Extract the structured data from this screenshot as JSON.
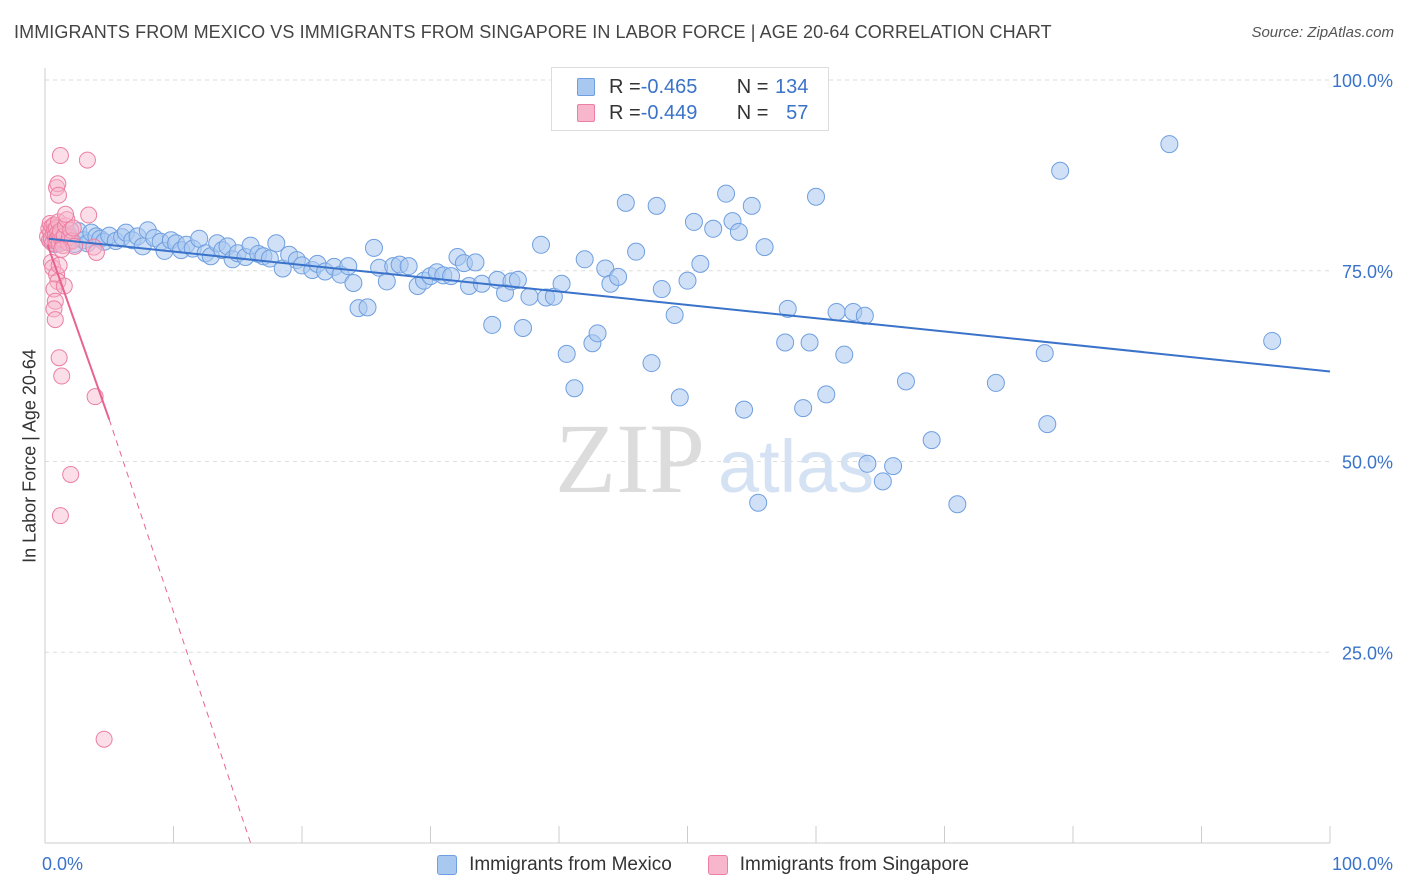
{
  "header": {
    "title": "IMMIGRANTS FROM MEXICO VS IMMIGRANTS FROM SINGAPORE IN LABOR FORCE | AGE 20-64 CORRELATION CHART",
    "source": "Source: ZipAtlas.com"
  },
  "watermark": {
    "zip": "ZIP",
    "atlas": "atlas"
  },
  "legend_top": {
    "rows": [
      {
        "r_label": "R = ",
        "r_value": "-0.465",
        "n_label": "N = ",
        "n_value": "134"
      },
      {
        "r_label": "R = ",
        "r_value": "-0.449",
        "n_label": "N = ",
        "n_value": "57"
      }
    ]
  },
  "colors": {
    "mexico_fill": "#a9c8f0",
    "mexico_stroke": "#6f9fe0",
    "mexico_line": "#3a73c9",
    "singapore_fill": "#f7b6cb",
    "singapore_stroke": "#ec7fa2",
    "singapore_line": "#e8648f",
    "tick_label": "#3a73c9",
    "grid": "#dddddd"
  },
  "chart_data": {
    "type": "scatter",
    "title": "IMMIGRANTS FROM MEXICO VS IMMIGRANTS FROM SINGAPORE IN LABOR FORCE | AGE 20-64 CORRELATION CHART",
    "xlabel": "",
    "ylabel": "In Labor Force | Age 20-64",
    "xlim": [
      0,
      100
    ],
    "ylim": [
      0,
      100
    ],
    "x_tick_labels": [
      "0.0%",
      "100.0%"
    ],
    "y_ticks": [
      25,
      50,
      75,
      100
    ],
    "y_tick_labels": [
      "25.0%",
      "50.0%",
      "75.0%",
      "100.0%"
    ],
    "grid": true,
    "legend_position": "bottom",
    "series": [
      {
        "name": "Immigrants from Mexico",
        "R": -0.465,
        "N": 134,
        "trend": {
          "x0": 0.3,
          "y0": 79.2,
          "x1": 100,
          "y1": 61.8,
          "style": "solid"
        },
        "points": [
          [
            0.5,
            79
          ],
          [
            0.8,
            78.5
          ],
          [
            1,
            80
          ],
          [
            1.2,
            79.5
          ],
          [
            1.5,
            78.8
          ],
          [
            1.8,
            79.8
          ],
          [
            2,
            79.2
          ],
          [
            2.3,
            78.5
          ],
          [
            2.6,
            80.2
          ],
          [
            3,
            79
          ],
          [
            3.3,
            78.6
          ],
          [
            3.6,
            80
          ],
          [
            4,
            79.5
          ],
          [
            4.3,
            79.2
          ],
          [
            4.6,
            78.8
          ],
          [
            5,
            79.6
          ],
          [
            5.5,
            78.9
          ],
          [
            6,
            79.4
          ],
          [
            6.3,
            80
          ],
          [
            6.8,
            79
          ],
          [
            7.2,
            79.5
          ],
          [
            7.6,
            78.2
          ],
          [
            8,
            80.3
          ],
          [
            8.5,
            79.3
          ],
          [
            9,
            78.8
          ],
          [
            9.3,
            77.6
          ],
          [
            9.8,
            79
          ],
          [
            10.2,
            78.6
          ],
          [
            10.6,
            77.7
          ],
          [
            11,
            78.4
          ],
          [
            11.5,
            77.9
          ],
          [
            12,
            79.2
          ],
          [
            12.5,
            77.3
          ],
          [
            12.9,
            76.9
          ],
          [
            13.4,
            78.6
          ],
          [
            13.8,
            77.7
          ],
          [
            14.2,
            78.2
          ],
          [
            14.6,
            76.5
          ],
          [
            15,
            77.3
          ],
          [
            15.6,
            76.8
          ],
          [
            16,
            78.3
          ],
          [
            16.6,
            77.2
          ],
          [
            17,
            76.9
          ],
          [
            17.5,
            76.6
          ],
          [
            18,
            78.6
          ],
          [
            18.5,
            75.3
          ],
          [
            19,
            77.1
          ],
          [
            19.6,
            76.4
          ],
          [
            20,
            75.7
          ],
          [
            20.8,
            75.1
          ],
          [
            21.2,
            75.9
          ],
          [
            21.8,
            74.9
          ],
          [
            22.5,
            75.5
          ],
          [
            23,
            74.5
          ],
          [
            23.6,
            75.6
          ],
          [
            24,
            73.4
          ],
          [
            24.4,
            70.1
          ],
          [
            25.1,
            70.2
          ],
          [
            25.6,
            78
          ],
          [
            26,
            75.4
          ],
          [
            26.6,
            73.6
          ],
          [
            27.1,
            75.6
          ],
          [
            27.6,
            75.8
          ],
          [
            28.3,
            75.6
          ],
          [
            29,
            73
          ],
          [
            29.5,
            73.7
          ],
          [
            30,
            74.3
          ],
          [
            30.5,
            74.8
          ],
          [
            31,
            74.4
          ],
          [
            31.6,
            74.3
          ],
          [
            32.1,
            76.8
          ],
          [
            32.6,
            76
          ],
          [
            33,
            73
          ],
          [
            33.5,
            76.1
          ],
          [
            34,
            73.3
          ],
          [
            34.8,
            67.9
          ],
          [
            35.2,
            73.8
          ],
          [
            35.8,
            72.1
          ],
          [
            36.3,
            73.6
          ],
          [
            36.8,
            73.8
          ],
          [
            37.2,
            67.5
          ],
          [
            37.7,
            71.6
          ],
          [
            39,
            71.5
          ],
          [
            38.6,
            78.4
          ],
          [
            39.6,
            71.6
          ],
          [
            40.2,
            73.3
          ],
          [
            40.6,
            64.1
          ],
          [
            41.2,
            59.6
          ],
          [
            42,
            76.5
          ],
          [
            42.6,
            65.5
          ],
          [
            43,
            66.8
          ],
          [
            43.6,
            75.3
          ],
          [
            44,
            73.3
          ],
          [
            44.6,
            74.2
          ],
          [
            45.2,
            83.9
          ],
          [
            46,
            77.5
          ],
          [
            47.2,
            62.9
          ],
          [
            47.6,
            83.5
          ],
          [
            48,
            72.6
          ],
          [
            49,
            69.2
          ],
          [
            49.4,
            58.4
          ],
          [
            50,
            73.7
          ],
          [
            50.5,
            81.4
          ],
          [
            51,
            75.9
          ],
          [
            52,
            80.5
          ],
          [
            53,
            85.1
          ],
          [
            53.5,
            81.5
          ],
          [
            54,
            80.1
          ],
          [
            54.4,
            56.8
          ],
          [
            55,
            83.5
          ],
          [
            55.5,
            44.6
          ],
          [
            56,
            78.1
          ],
          [
            57.6,
            65.6
          ],
          [
            57.8,
            70
          ],
          [
            59,
            57
          ],
          [
            59.5,
            65.6
          ],
          [
            60,
            84.7
          ],
          [
            60.8,
            58.8
          ],
          [
            61.6,
            69.6
          ],
          [
            62.2,
            64
          ],
          [
            62.9,
            69.6
          ],
          [
            63.8,
            69.1
          ],
          [
            64,
            49.7
          ],
          [
            65.2,
            47.4
          ],
          [
            66,
            49.4
          ],
          [
            67,
            60.5
          ],
          [
            69,
            52.8
          ],
          [
            71,
            44.4
          ],
          [
            74,
            60.3
          ],
          [
            77.8,
            64.2
          ],
          [
            78,
            54.9
          ],
          [
            79,
            88.1
          ],
          [
            87.5,
            91.6
          ],
          [
            95.5,
            65.8
          ]
        ]
      },
      {
        "name": "Immigrants from Singapore",
        "R": -0.449,
        "N": 57,
        "trend": {
          "x0": 0.2,
          "y0": 78.4,
          "x1": 5,
          "y1": 55.5,
          "style": "solid",
          "ext_x1": 16,
          "ext_y1": 0,
          "ext_style": "dashed"
        },
        "points": [
          [
            0.2,
            79.5
          ],
          [
            0.3,
            80.5
          ],
          [
            0.35,
            79
          ],
          [
            0.4,
            81.2
          ],
          [
            0.45,
            80.1
          ],
          [
            0.5,
            79.3
          ],
          [
            0.55,
            80.8
          ],
          [
            0.6,
            78.6
          ],
          [
            0.65,
            79.9
          ],
          [
            0.7,
            81
          ],
          [
            0.75,
            80.3
          ],
          [
            0.8,
            79.6
          ],
          [
            0.85,
            78.9
          ],
          [
            0.9,
            80.6
          ],
          [
            0.95,
            79.2
          ],
          [
            1,
            80
          ],
          [
            1.05,
            81.4
          ],
          [
            1.1,
            78.5
          ],
          [
            1.15,
            79.8
          ],
          [
            1.2,
            80.2
          ],
          [
            1.3,
            79.1
          ],
          [
            1.4,
            78.3
          ],
          [
            1.5,
            79.6
          ],
          [
            1.6,
            80.9
          ],
          [
            1.7,
            81.7
          ],
          [
            1.8,
            78.7
          ],
          [
            1.9,
            79.4
          ],
          [
            2,
            80.3
          ],
          [
            2.1,
            78.9
          ],
          [
            2.2,
            80.6
          ],
          [
            2.3,
            78.2
          ],
          [
            0.5,
            76.1
          ],
          [
            0.6,
            75.4
          ],
          [
            0.9,
            74.5
          ],
          [
            1,
            73.6
          ],
          [
            1.1,
            75.7
          ],
          [
            0.7,
            72.6
          ],
          [
            0.8,
            71
          ],
          [
            0.7,
            70
          ],
          [
            0.8,
            68.6
          ],
          [
            1.5,
            73
          ],
          [
            1.3,
            77.8
          ],
          [
            0.9,
            85.9
          ],
          [
            1,
            86.4
          ],
          [
            1.05,
            84.9
          ],
          [
            1.2,
            90.1
          ],
          [
            3.3,
            89.5
          ],
          [
            1.6,
            82.4
          ],
          [
            3.4,
            82.3
          ],
          [
            3.8,
            78.1
          ],
          [
            4,
            77.4
          ],
          [
            1.1,
            63.6
          ],
          [
            1.3,
            61.2
          ],
          [
            3.9,
            58.5
          ],
          [
            2,
            48.3
          ],
          [
            1.2,
            42.9
          ],
          [
            4.6,
            13.6
          ]
        ]
      }
    ]
  }
}
